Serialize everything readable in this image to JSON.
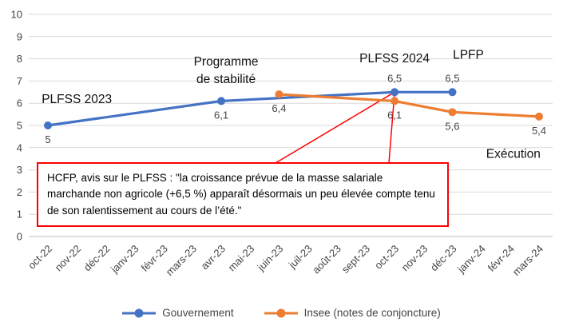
{
  "chart_data": {
    "type": "line",
    "title": "",
    "x_categories": [
      "oct-22",
      "nov-22",
      "déc-22",
      "janv-23",
      "févr-23",
      "mars-23",
      "avr-23",
      "mai-23",
      "juin-23",
      "juil-23",
      "août-23",
      "sept-23",
      "oct-23",
      "nov-23",
      "déc-23",
      "janv-24",
      "févr-24",
      "mars-24"
    ],
    "ylim": [
      0,
      10
    ],
    "y_tick_step": 1,
    "grid": true,
    "legend_position": "bottom",
    "series": [
      {
        "name": "Gouvernement",
        "color": "#4472C4",
        "points": [
          {
            "cat": "oct-22",
            "y": 5,
            "label": "5",
            "label_pos": "below"
          },
          {
            "cat": "avr-23",
            "y": 6.1,
            "label": "6,1",
            "label_pos": "below"
          },
          {
            "cat": "oct-23",
            "y": 6.5,
            "label": "6,5",
            "label_pos": "above"
          },
          {
            "cat": "déc-23",
            "y": 6.5,
            "label": "6,5",
            "label_pos": "above"
          }
        ]
      },
      {
        "name": "Insee (notes de conjoncture)",
        "color": "#ED7D31",
        "points": [
          {
            "cat": "juin-23",
            "y": 6.4,
            "label": "6,4",
            "label_pos": "below"
          },
          {
            "cat": "oct-23",
            "y": 6.1,
            "label": "6,1",
            "label_pos": "below"
          },
          {
            "cat": "déc-23",
            "y": 5.6,
            "label": "5,6",
            "label_pos": "below"
          },
          {
            "cat": "mars-24",
            "y": 5.4,
            "label": "5,4",
            "label_pos": "below"
          }
        ]
      }
    ],
    "annotations": [
      {
        "lines": [
          "PLFSS 2023"
        ],
        "cat": "nov-22",
        "y": 6.0,
        "dx": 0
      },
      {
        "lines": [
          "Programme",
          "de stabilité"
        ],
        "cat": "avr-23",
        "y": 7.7,
        "dx": 6
      },
      {
        "lines": [
          "PLFSS 2024"
        ],
        "cat": "oct-23",
        "y": 7.85,
        "dx": 0
      },
      {
        "lines": [
          "LPFP"
        ],
        "cat": "déc-23",
        "y": 8.0,
        "dx": 20
      },
      {
        "lines": [
          "Exécution"
        ],
        "cat": "févr-24",
        "y": 3.55,
        "dx": 4
      }
    ]
  },
  "callout": {
    "text": "HCFP, avis sur le PLFSS : \"la croissance prévue de la masse salariale marchande non agricole (+6,5 %) apparaît désormais un peu élevée compte tenu de son ralentissement au cours de l’été.\"",
    "border_color": "#FF0000",
    "anchor": {
      "cat": "oct-23",
      "y": 6.5
    }
  }
}
